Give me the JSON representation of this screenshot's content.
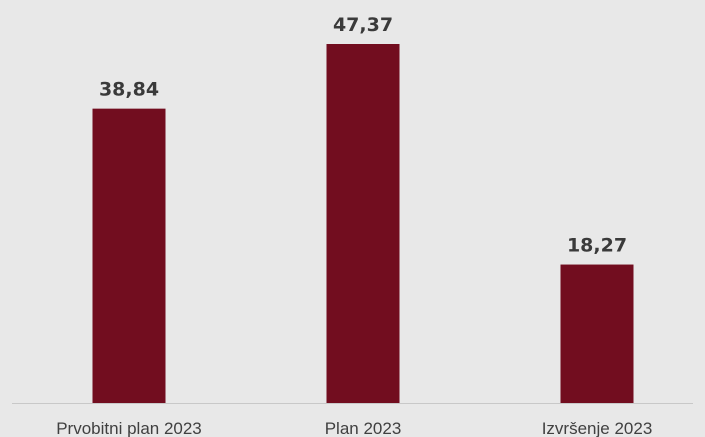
{
  "chart_data": {
    "type": "bar",
    "categories": [
      "Prvobitni plan 2023",
      "Plan 2023",
      "Izvršenje 2023"
    ],
    "values": [
      38.84,
      47.37,
      18.27
    ],
    "value_labels": [
      "38,84",
      "47,37",
      "18,27"
    ],
    "title": "",
    "xlabel": "",
    "ylabel": "",
    "ylim": [
      0,
      50
    ],
    "grid": false,
    "legend": "none",
    "bar_color": "#720d1f",
    "background": "#e8e8e8",
    "axis_color": "#c8c8c8",
    "label_color": "#404040",
    "value_label_color": "#3a3a3a"
  }
}
